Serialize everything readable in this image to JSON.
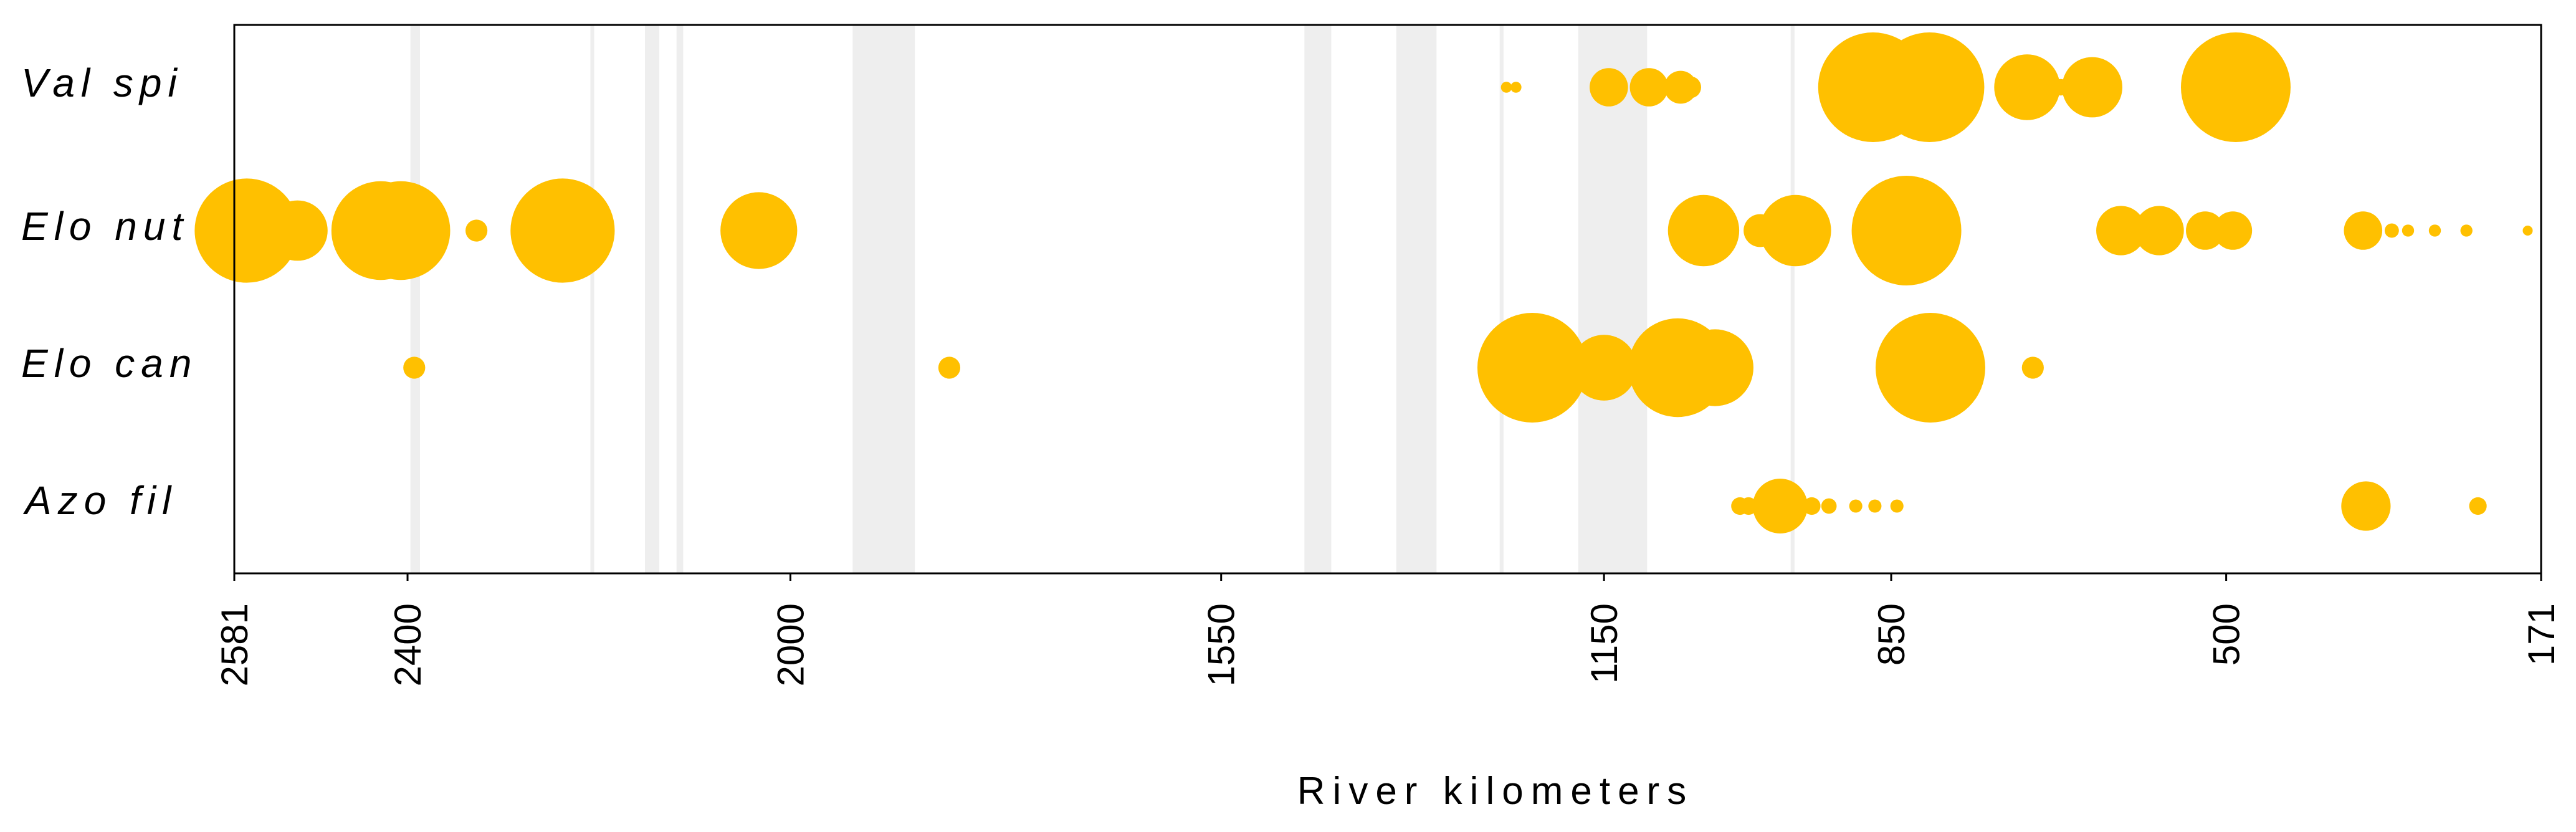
{
  "chart_data": {
    "type": "scatter",
    "title": "",
    "xlabel": "River kilometers",
    "ylabel": "",
    "x_reversed": true,
    "xlim": [
      2581,
      171
    ],
    "x_ticks": [
      "2581",
      "2400",
      "2000",
      "1550",
      "1150",
      "850",
      "500",
      "171"
    ],
    "x_tick_values": [
      2581,
      2400,
      2000,
      1550,
      1150,
      850,
      500,
      171
    ],
    "categories": [
      "Val spi",
      "Elo nut",
      "Elo can",
      "Azo fil"
    ],
    "marker_color": "#FFC000",
    "band_color": "#EEEEEE",
    "size_scale": "relative abundance (0-1, proportional to bubble diameter)",
    "bands": [
      [
        2397,
        2387
      ],
      [
        2209,
        2205
      ],
      [
        2152,
        2137
      ],
      [
        2119,
        2112
      ],
      [
        1935,
        1870
      ],
      [
        1463,
        1435
      ],
      [
        1367,
        1325
      ],
      [
        1259,
        1255
      ],
      [
        1177,
        1105
      ],
      [
        955,
        951
      ]
    ],
    "series": [
      {
        "name": "Val spi",
        "points": [
          [
            1252,
            0.1
          ],
          [
            1242,
            0.1
          ],
          [
            1145,
            0.35
          ],
          [
            1103,
            0.35
          ],
          [
            1070,
            0.3
          ],
          [
            1060,
            0.2
          ],
          [
            869,
            1.0
          ],
          [
            810,
            1.0
          ],
          [
            708,
            0.6
          ],
          [
            673,
            0.15
          ],
          [
            640,
            0.55
          ],
          [
            490,
            1.0
          ]
        ]
      },
      {
        "name": "Elo nut",
        "points": [
          [
            2568,
            0.95
          ],
          [
            2515,
            0.55
          ],
          [
            2428,
            0.9
          ],
          [
            2407,
            0.9
          ],
          [
            2328,
            0.2
          ],
          [
            2238,
            0.95
          ],
          [
            2033,
            0.7
          ],
          [
            1046,
            0.65
          ],
          [
            987,
            0.3
          ],
          [
            950,
            0.65
          ],
          [
            834,
            1.0
          ],
          [
            610,
            0.45
          ],
          [
            570,
            0.45
          ],
          [
            522,
            0.35
          ],
          [
            493,
            0.35
          ],
          [
            357,
            0.35
          ],
          [
            327,
            0.13
          ],
          [
            310,
            0.11
          ],
          [
            282,
            0.11
          ],
          [
            249,
            0.11
          ],
          [
            185,
            0.09
          ]
        ]
      },
      {
        "name": "Elo can",
        "points": [
          [
            2393,
            0.2
          ],
          [
            1834,
            0.2
          ],
          [
            1225,
            1.0
          ],
          [
            1150,
            0.6
          ],
          [
            1073,
            0.9
          ],
          [
            1034,
            0.7
          ],
          [
            809,
            1.0
          ],
          [
            702,
            0.2
          ]
        ]
      },
      {
        "name": "Azo fil",
        "points": [
          [
            1008,
            0.16
          ],
          [
            999,
            0.16
          ],
          [
            986,
            0.16
          ],
          [
            966,
            0.5
          ],
          [
            933,
            0.16
          ],
          [
            915,
            0.14
          ],
          [
            887,
            0.12
          ],
          [
            867,
            0.12
          ],
          [
            844,
            0.12
          ],
          [
            354,
            0.45
          ],
          [
            237,
            0.16
          ]
        ]
      }
    ]
  }
}
